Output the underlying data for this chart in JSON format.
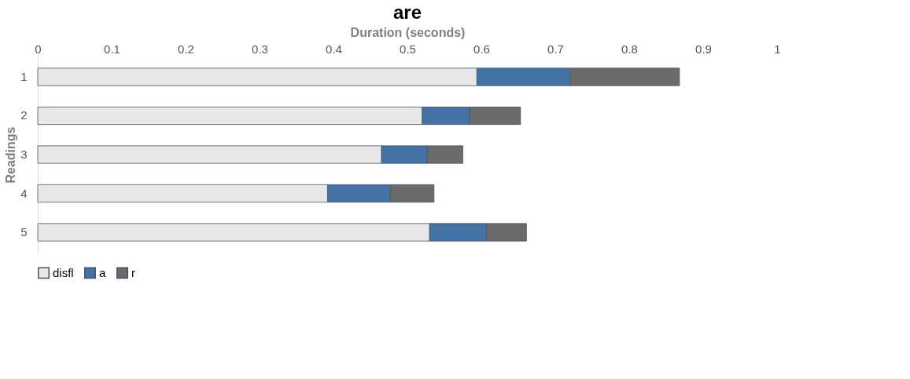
{
  "chart_data": {
    "type": "bar",
    "orientation": "horizontal",
    "stacked": true,
    "title": "are",
    "xlabel": "Duration (seconds)",
    "ylabel": "Readings",
    "categories": [
      "1",
      "2",
      "3",
      "4",
      "5"
    ],
    "series": [
      {
        "name": "disfl",
        "color": "#e8e8e8",
        "values": [
          0.594,
          0.52,
          0.465,
          0.392,
          0.53
        ]
      },
      {
        "name": "a",
        "color": "#4472a4",
        "values": [
          0.126,
          0.064,
          0.062,
          0.085,
          0.077
        ]
      },
      {
        "name": "r",
        "color": "#6b6b6b",
        "values": [
          0.148,
          0.069,
          0.048,
          0.059,
          0.054
        ]
      }
    ],
    "xlim": [
      0,
      1
    ],
    "xticks": [
      0,
      0.1,
      0.2,
      0.3,
      0.4,
      0.5,
      0.6,
      0.7,
      0.8,
      0.9,
      1
    ],
    "grid": false,
    "legend": "bottom"
  }
}
